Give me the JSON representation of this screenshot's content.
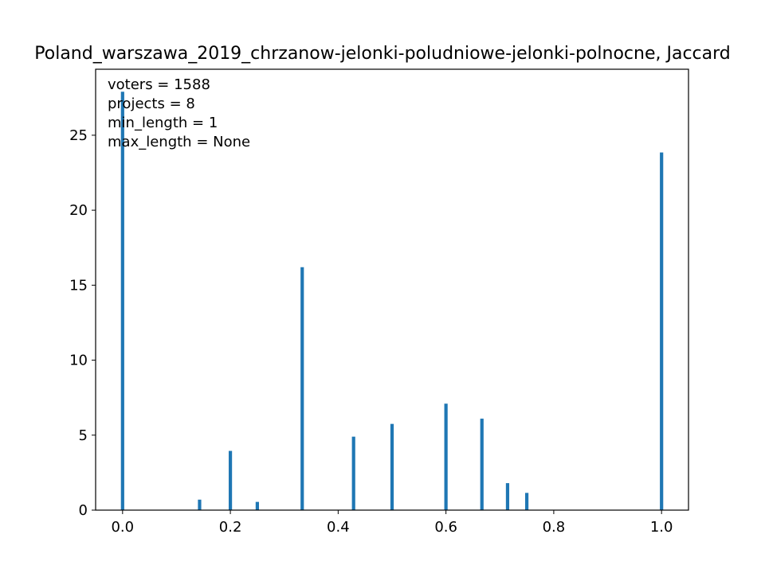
{
  "chart_data": {
    "type": "bar",
    "title": "Poland_warszawa_2019_chrzanow-jelonki-poludniowe-jelonki-polnocne, Jaccard",
    "xlabel": "",
    "ylabel": "",
    "xlim": [
      -0.05,
      1.05
    ],
    "ylim": [
      0,
      29.4
    ],
    "x_ticks": [
      "0.0",
      "0.2",
      "0.4",
      "0.6",
      "0.8",
      "1.0"
    ],
    "y_ticks": [
      "0",
      "5",
      "10",
      "15",
      "20",
      "25"
    ],
    "grid": false,
    "bar_color": "#1f77b4",
    "bin_width": 0.01,
    "x": [
      0.0,
      0.1429,
      0.2,
      0.25,
      0.3333,
      0.4286,
      0.5,
      0.6,
      0.6667,
      0.7143,
      0.75,
      1.0
    ],
    "values": [
      27.9,
      0.7,
      3.95,
      0.55,
      16.2,
      4.9,
      5.75,
      7.1,
      6.1,
      1.8,
      1.15,
      23.85
    ],
    "annotations": [
      "voters = 1588",
      "projects = 8",
      "min_length = 1",
      "max_length = None"
    ]
  }
}
